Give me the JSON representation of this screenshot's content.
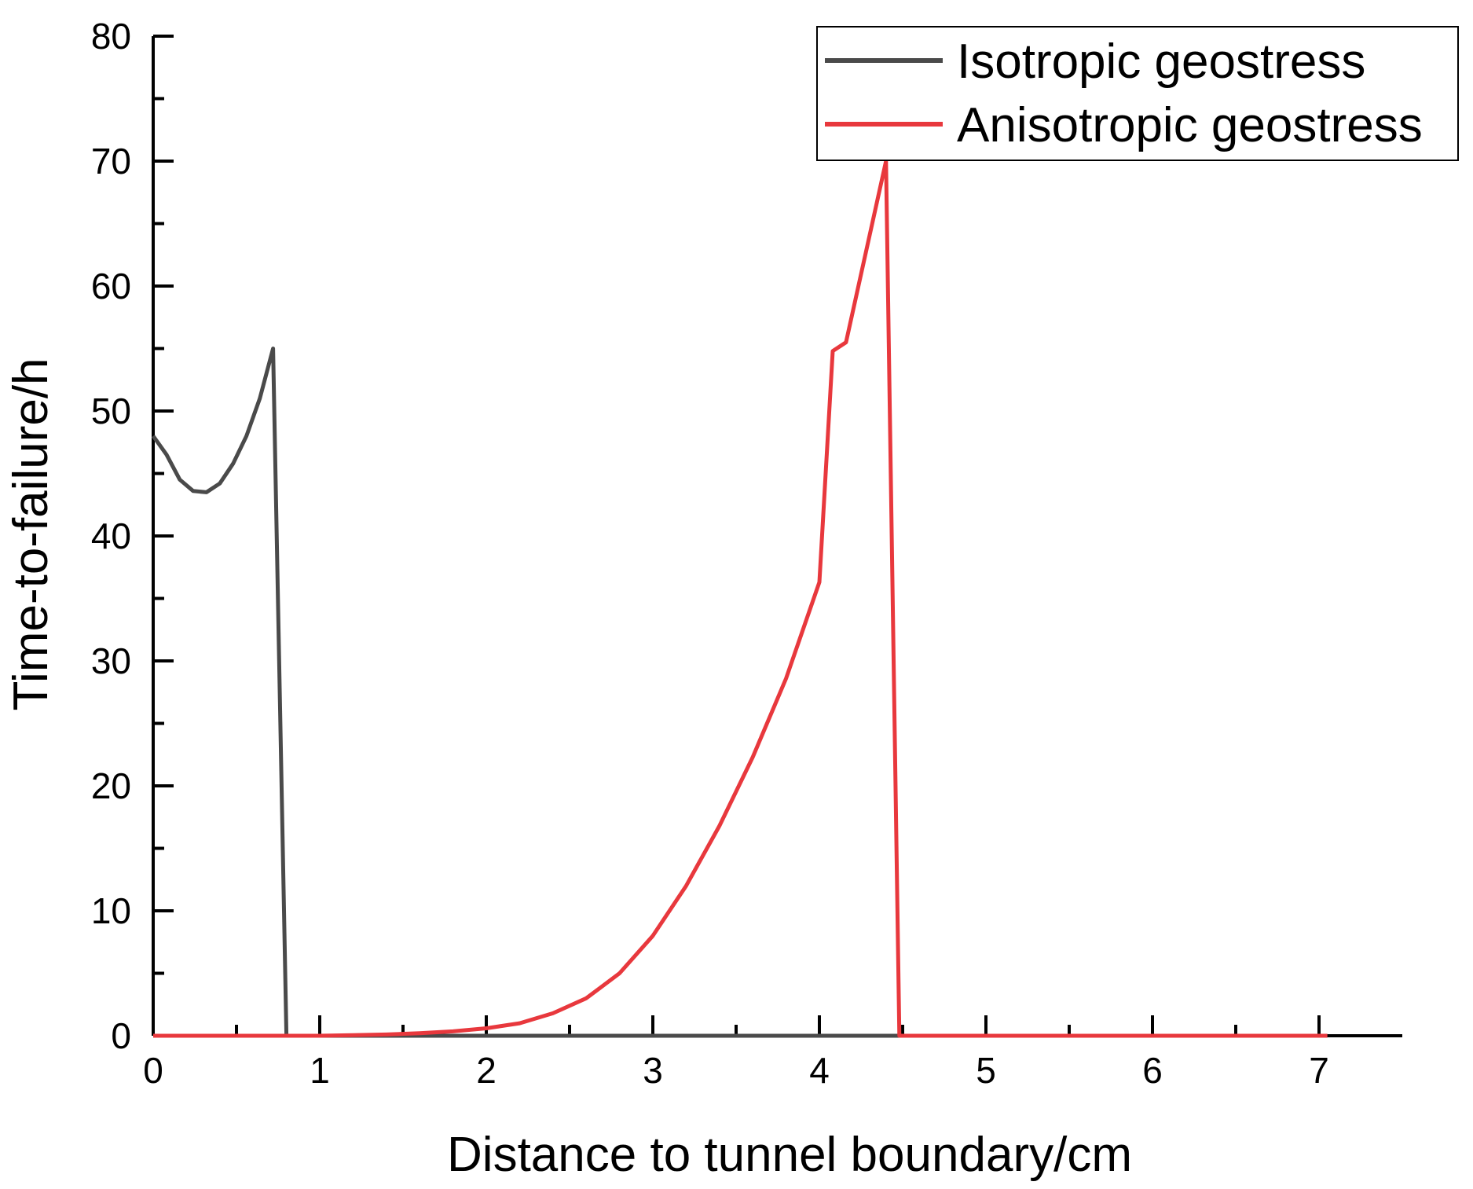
{
  "chart_data": {
    "type": "line",
    "xlabel": "Distance to tunnel boundary/cm",
    "ylabel": "Time-to-failure/h",
    "xlim": [
      0,
      7.5
    ],
    "ylim": [
      0,
      80
    ],
    "x_ticks": [
      "0",
      "1",
      "2",
      "3",
      "4",
      "5",
      "6",
      "7"
    ],
    "y_ticks": [
      "0",
      "10",
      "20",
      "30",
      "40",
      "50",
      "60",
      "70",
      "80"
    ],
    "grid": false,
    "legend_position": "top-right",
    "series": [
      {
        "name": "Isotropic geostress",
        "color": "#4a4a4a",
        "x": [
          0,
          0.08,
          0.16,
          0.24,
          0.32,
          0.4,
          0.48,
          0.56,
          0.64,
          0.72,
          0.8,
          1.0,
          2.0,
          3.0,
          4.0,
          5.0,
          6.0,
          7.0,
          7.05
        ],
        "y": [
          48.0,
          46.5,
          44.5,
          43.6,
          43.5,
          44.2,
          45.8,
          48.0,
          51.0,
          55.0,
          0,
          0,
          0,
          0,
          0,
          0,
          0,
          0,
          0
        ]
      },
      {
        "name": "Anisotropic geostress",
        "color": "#e8383d",
        "x": [
          0,
          1.0,
          1.2,
          1.4,
          1.6,
          1.8,
          2.0,
          2.2,
          2.4,
          2.6,
          2.8,
          3.0,
          3.2,
          3.4,
          3.6,
          3.8,
          4.0,
          4.08,
          4.16,
          4.4,
          4.48,
          5.0,
          6.0,
          7.0,
          7.05
        ],
        "y": [
          0,
          0,
          0.05,
          0.1,
          0.2,
          0.35,
          0.6,
          1.0,
          1.8,
          3.0,
          5.0,
          8.0,
          12.0,
          16.8,
          22.3,
          28.6,
          36.3,
          54.8,
          55.5,
          70.0,
          0,
          0,
          0,
          0,
          0
        ]
      }
    ]
  }
}
